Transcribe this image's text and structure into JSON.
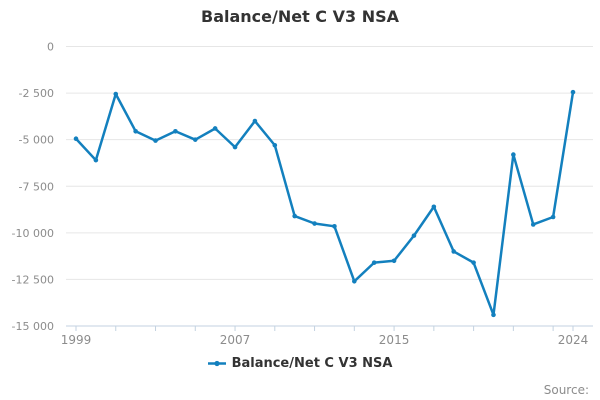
{
  "page": {
    "title": "Balance/Net C V3 NSA",
    "source_label": "Source:"
  },
  "legend": {
    "items": [
      {
        "label": "Balance/Net C V3 NSA",
        "color": "#1380be"
      }
    ]
  },
  "chart_data": {
    "type": "line",
    "title": "Balance/Net C V3 NSA",
    "xlabel": "",
    "ylabel": "",
    "x": [
      1999,
      2000,
      2001,
      2002,
      2003,
      2004,
      2005,
      2006,
      2007,
      2008,
      2009,
      2010,
      2011,
      2012,
      2013,
      2014,
      2015,
      2016,
      2017,
      2018,
      2019,
      2020,
      2021,
      2022,
      2023,
      2024
    ],
    "series": [
      {
        "name": "Balance/Net C V3 NSA",
        "color": "#1380be",
        "values": [
          -4950,
          -6100,
          -2550,
          -4550,
          -5050,
          -4550,
          -5000,
          -4400,
          -5400,
          -4000,
          -5300,
          -9100,
          -9500,
          -9650,
          -12600,
          -11600,
          -11500,
          -10150,
          -8600,
          -11000,
          -11600,
          -14400,
          -5800,
          -9550,
          -9150,
          -2450
        ]
      }
    ],
    "xlim": [
      1999,
      2024
    ],
    "ylim": [
      -15000,
      0
    ],
    "y_ticks": [
      0,
      -2500,
      -5000,
      -7500,
      -10000,
      -12500,
      -15000
    ],
    "y_tick_labels": [
      "0",
      "-2 500",
      "-5 000",
      "-7 500",
      "-10 000",
      "-12 500",
      "-15 000"
    ],
    "x_ticks": [
      1999,
      2001,
      2003,
      2005,
      2007,
      2009,
      2011,
      2013,
      2015,
      2017,
      2019,
      2021,
      2023,
      2024
    ],
    "x_labeled_ticks": [
      1999,
      2007,
      2015,
      2024
    ],
    "grid": true,
    "legend_position": "bottom",
    "grid_color": "#e6e6e6",
    "axis_color": "#c3d2e0",
    "label_color": "#8c8c8c",
    "marker": "dot"
  }
}
